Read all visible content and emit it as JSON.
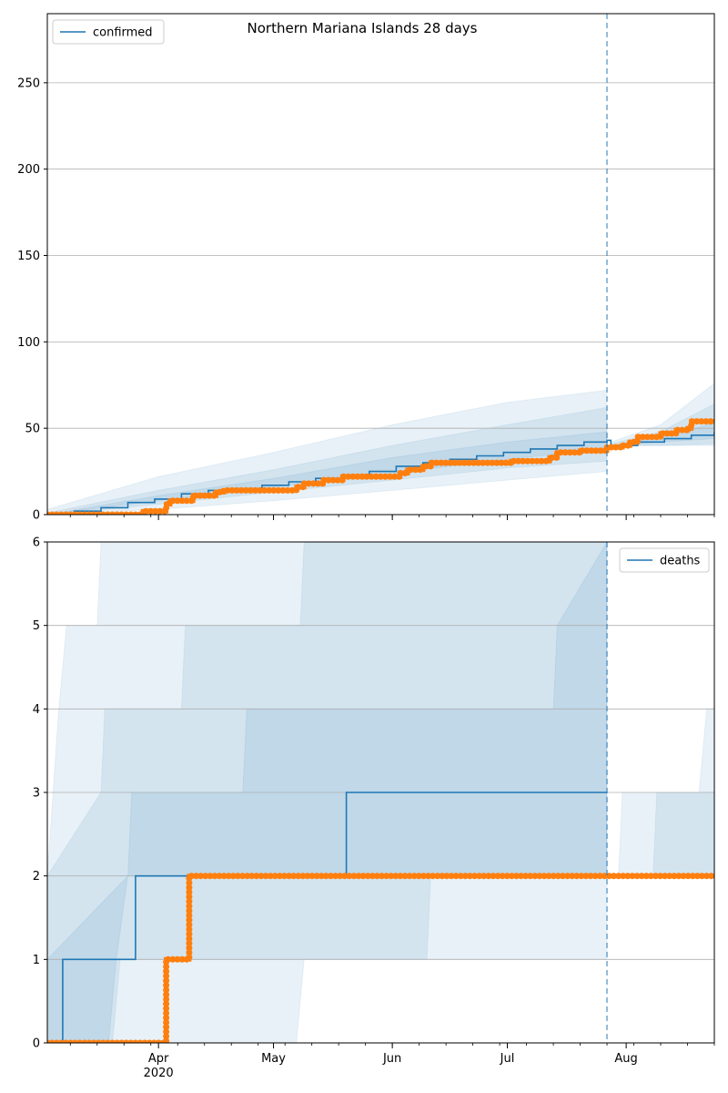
{
  "chart_data": [
    {
      "type": "line",
      "title": "Northern Mariana Islands 28 days",
      "xlabel": "",
      "ylabel": "",
      "xlim": [
        "2020-03-03",
        "2020-08-24"
      ],
      "ylim": [
        0,
        290
      ],
      "yticks": [
        0,
        50,
        100,
        150,
        200,
        250
      ],
      "xticks": [
        {
          "date": "2020-04-01",
          "label": "Apr",
          "sublabel": "2020"
        },
        {
          "date": "2020-05-01",
          "label": "May",
          "sublabel": ""
        },
        {
          "date": "2020-06-01",
          "label": "Jun",
          "sublabel": ""
        },
        {
          "date": "2020-07-01",
          "label": "Jul",
          "sublabel": ""
        },
        {
          "date": "2020-08-01",
          "label": "Aug",
          "sublabel": ""
        }
      ],
      "grid": "horizontal",
      "legend": {
        "position": "top-left",
        "entries": [
          "confirmed"
        ]
      },
      "forecast_start": "2020-07-27",
      "series": [
        {
          "name": "confirmed",
          "kind": "line",
          "color": "#1f77b4",
          "points": [
            [
              "2020-03-03",
              0
            ],
            [
              "2020-03-10",
              2
            ],
            [
              "2020-03-17",
              4
            ],
            [
              "2020-03-24",
              7
            ],
            [
              "2020-03-31",
              9
            ],
            [
              "2020-04-07",
              12
            ],
            [
              "2020-04-14",
              14
            ],
            [
              "2020-04-21",
              15
            ],
            [
              "2020-04-28",
              17
            ],
            [
              "2020-05-05",
              19
            ],
            [
              "2020-05-12",
              21
            ],
            [
              "2020-05-19",
              23
            ],
            [
              "2020-05-26",
              25
            ],
            [
              "2020-06-02",
              28
            ],
            [
              "2020-06-09",
              30
            ],
            [
              "2020-06-16",
              32
            ],
            [
              "2020-06-23",
              34
            ],
            [
              "2020-06-30",
              36
            ],
            [
              "2020-07-07",
              38
            ],
            [
              "2020-07-14",
              40
            ],
            [
              "2020-07-21",
              42
            ],
            [
              "2020-07-27",
              43
            ],
            [
              "2020-07-28",
              40
            ],
            [
              "2020-08-04",
              42
            ],
            [
              "2020-08-11",
              44
            ],
            [
              "2020-08-18",
              46
            ],
            [
              "2020-08-24",
              48
            ]
          ]
        },
        {
          "name": "",
          "kind": "observed",
          "color": "#ff7f0e",
          "points": [
            [
              "2020-03-03",
              0
            ],
            [
              "2020-03-17",
              0
            ],
            [
              "2020-03-27",
              0
            ],
            [
              "2020-03-28",
              2
            ],
            [
              "2020-04-02",
              2
            ],
            [
              "2020-04-03",
              6
            ],
            [
              "2020-04-04",
              8
            ],
            [
              "2020-04-09",
              8
            ],
            [
              "2020-04-10",
              11
            ],
            [
              "2020-04-15",
              11
            ],
            [
              "2020-04-16",
              13
            ],
            [
              "2020-04-18",
              14
            ],
            [
              "2020-05-05",
              14
            ],
            [
              "2020-05-06",
              14
            ],
            [
              "2020-05-07",
              16
            ],
            [
              "2020-05-09",
              18
            ],
            [
              "2020-05-14",
              20
            ],
            [
              "2020-05-19",
              22
            ],
            [
              "2020-06-01",
              22
            ],
            [
              "2020-06-03",
              24
            ],
            [
              "2020-06-05",
              26
            ],
            [
              "2020-06-09",
              28
            ],
            [
              "2020-06-11",
              30
            ],
            [
              "2020-07-01",
              30
            ],
            [
              "2020-07-02",
              31
            ],
            [
              "2020-07-11",
              31
            ],
            [
              "2020-07-12",
              33
            ],
            [
              "2020-07-14",
              36
            ],
            [
              "2020-07-20",
              37
            ],
            [
              "2020-07-27",
              39
            ],
            [
              "2020-07-31",
              40
            ],
            [
              "2020-08-02",
              42
            ],
            [
              "2020-08-04",
              45
            ],
            [
              "2020-08-10",
              47
            ],
            [
              "2020-08-14",
              49
            ],
            [
              "2020-08-17",
              50
            ],
            [
              "2020-08-18",
              54
            ],
            [
              "2020-08-24",
              54
            ]
          ]
        }
      ],
      "bands": [
        {
          "opacity": 0.1,
          "upper": [
            [
              "2020-03-03",
              3
            ],
            [
              "2020-04-01",
              22
            ],
            [
              "2020-05-01",
              36
            ],
            [
              "2020-06-01",
              52
            ],
            [
              "2020-07-01",
              65
            ],
            [
              "2020-07-27",
              72
            ]
          ],
          "lower": [
            [
              "2020-03-03",
              0
            ],
            [
              "2020-04-01",
              3
            ],
            [
              "2020-05-01",
              8
            ],
            [
              "2020-06-01",
              14
            ],
            [
              "2020-07-01",
              20
            ],
            [
              "2020-07-27",
              25
            ]
          ]
        },
        {
          "opacity": 0.1,
          "upper": [
            [
              "2020-03-03",
              1
            ],
            [
              "2020-04-01",
              14
            ],
            [
              "2020-05-01",
              26
            ],
            [
              "2020-06-01",
              40
            ],
            [
              "2020-07-01",
              52
            ],
            [
              "2020-07-27",
              62
            ]
          ],
          "lower": [
            [
              "2020-03-03",
              0
            ],
            [
              "2020-04-01",
              6
            ],
            [
              "2020-05-01",
              13
            ],
            [
              "2020-06-01",
              20
            ],
            [
              "2020-07-01",
              27
            ],
            [
              "2020-07-27",
              31
            ]
          ]
        },
        {
          "opacity": 0.1,
          "upper": [
            [
              "2020-03-03",
              0
            ],
            [
              "2020-04-01",
              11
            ],
            [
              "2020-05-01",
              21
            ],
            [
              "2020-06-01",
              33
            ],
            [
              "2020-07-01",
              42
            ],
            [
              "2020-07-27",
              48
            ]
          ],
          "lower": [
            [
              "2020-03-03",
              0
            ],
            [
              "2020-04-01",
              8
            ],
            [
              "2020-05-01",
              16
            ],
            [
              "2020-06-01",
              24
            ],
            [
              "2020-07-01",
              32
            ],
            [
              "2020-07-27",
              38
            ]
          ]
        },
        {
          "opacity": 0.1,
          "upper": [
            [
              "2020-07-28",
              42
            ],
            [
              "2020-08-10",
              52
            ],
            [
              "2020-08-24",
              76
            ]
          ],
          "lower": [
            [
              "2020-07-28",
              40
            ],
            [
              "2020-08-10",
              40
            ],
            [
              "2020-08-24",
              40
            ]
          ]
        },
        {
          "opacity": 0.1,
          "upper": [
            [
              "2020-07-28",
              41
            ],
            [
              "2020-08-10",
              48
            ],
            [
              "2020-08-24",
              64
            ]
          ],
          "lower": [
            [
              "2020-07-28",
              40
            ],
            [
              "2020-08-10",
              40
            ],
            [
              "2020-08-24",
              41
            ]
          ]
        },
        {
          "opacity": 0.1,
          "upper": [
            [
              "2020-07-28",
              40
            ],
            [
              "2020-08-10",
              45
            ],
            [
              "2020-08-24",
              53
            ]
          ],
          "lower": [
            [
              "2020-07-28",
              40
            ],
            [
              "2020-08-10",
              42
            ],
            [
              "2020-08-24",
              44
            ]
          ]
        }
      ]
    },
    {
      "type": "line",
      "title": "",
      "xlabel": "",
      "ylabel": "",
      "xlim": [
        "2020-03-03",
        "2020-08-24"
      ],
      "ylim": [
        0,
        6
      ],
      "yticks": [
        0,
        1,
        2,
        3,
        4,
        5,
        6
      ],
      "xticks": [
        {
          "date": "2020-04-01",
          "label": "Apr",
          "sublabel": "2020"
        },
        {
          "date": "2020-05-01",
          "label": "May",
          "sublabel": ""
        },
        {
          "date": "2020-06-01",
          "label": "Jun",
          "sublabel": ""
        },
        {
          "date": "2020-07-01",
          "label": "Jul",
          "sublabel": ""
        },
        {
          "date": "2020-08-01",
          "label": "Aug",
          "sublabel": ""
        }
      ],
      "grid": "horizontal",
      "legend": {
        "position": "top-right",
        "entries": [
          "deaths"
        ]
      },
      "forecast_start": "2020-07-27",
      "series": [
        {
          "name": "deaths",
          "kind": "line",
          "color": "#1f77b4",
          "points": [
            [
              "2020-03-03",
              0
            ],
            [
              "2020-03-06",
              0
            ],
            [
              "2020-03-07",
              1
            ],
            [
              "2020-03-25",
              1
            ],
            [
              "2020-03-26",
              2
            ],
            [
              "2020-05-19",
              2
            ],
            [
              "2020-05-20",
              3
            ],
            [
              "2020-07-27",
              3
            ]
          ]
        },
        {
          "name": "",
          "kind": "observed",
          "color": "#ff7f0e",
          "points": [
            [
              "2020-03-03",
              0
            ],
            [
              "2020-04-02",
              0
            ],
            [
              "2020-04-03",
              1
            ],
            [
              "2020-04-08",
              1
            ],
            [
              "2020-04-09",
              2
            ],
            [
              "2020-08-24",
              2
            ]
          ]
        }
      ],
      "bands": [
        {
          "opacity": 0.1,
          "upper": [
            [
              "2020-03-03",
              2
            ],
            [
              "2020-03-06",
              4
            ],
            [
              "2020-03-08",
              5
            ],
            [
              "2020-03-16",
              5
            ],
            [
              "2020-03-17",
              6
            ],
            [
              "2020-07-27",
              6
            ]
          ],
          "lower": [
            [
              "2020-03-03",
              0
            ],
            [
              "2020-05-07",
              0
            ],
            [
              "2020-05-09",
              1
            ],
            [
              "2020-07-27",
              1
            ]
          ]
        },
        {
          "opacity": 0.1,
          "upper": [
            [
              "2020-03-03",
              2
            ],
            [
              "2020-03-17",
              3
            ],
            [
              "2020-03-18",
              4
            ],
            [
              "2020-04-07",
              4
            ],
            [
              "2020-04-08",
              5
            ],
            [
              "2020-05-08",
              5
            ],
            [
              "2020-05-09",
              6
            ],
            [
              "2020-07-27",
              6
            ]
          ],
          "lower": [
            [
              "2020-03-03",
              0
            ],
            [
              "2020-03-20",
              0
            ],
            [
              "2020-03-22",
              1
            ],
            [
              "2020-06-10",
              1
            ],
            [
              "2020-06-11",
              2
            ],
            [
              "2020-07-27",
              2
            ]
          ]
        },
        {
          "opacity": 0.1,
          "upper": [
            [
              "2020-03-03",
              1
            ],
            [
              "2020-03-24",
              2
            ],
            [
              "2020-03-25",
              3
            ],
            [
              "2020-04-23",
              3
            ],
            [
              "2020-04-24",
              4
            ],
            [
              "2020-07-13",
              4
            ],
            [
              "2020-07-14",
              5
            ],
            [
              "2020-07-27",
              6
            ]
          ],
          "lower": [
            [
              "2020-03-03",
              0
            ],
            [
              "2020-03-19",
              0
            ],
            [
              "2020-03-21",
              1
            ],
            [
              "2020-03-24",
              2
            ],
            [
              "2020-07-27",
              2
            ]
          ]
        },
        {
          "opacity": 0.1,
          "upper": [
            [
              "2020-07-30",
              2
            ],
            [
              "2020-07-31",
              3
            ],
            [
              "2020-08-20",
              3
            ],
            [
              "2020-08-22",
              4
            ],
            [
              "2020-08-24",
              4
            ]
          ],
          "lower": [
            [
              "2020-07-28",
              2
            ],
            [
              "2020-08-24",
              2
            ]
          ]
        },
        {
          "opacity": 0.1,
          "upper": [
            [
              "2020-08-08",
              2
            ],
            [
              "2020-08-09",
              3
            ],
            [
              "2020-08-24",
              3
            ]
          ],
          "lower": [
            [
              "2020-08-08",
              2
            ],
            [
              "2020-08-24",
              2
            ]
          ]
        }
      ]
    }
  ]
}
